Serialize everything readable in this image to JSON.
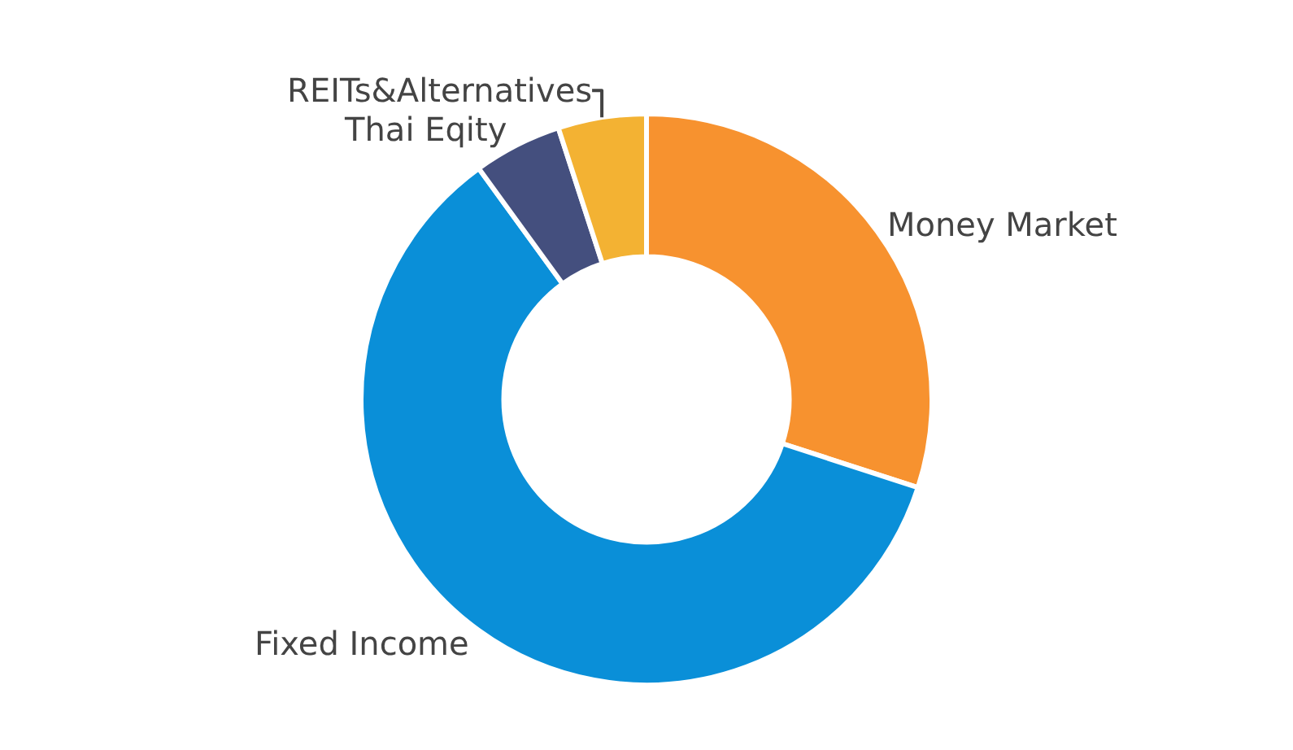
{
  "chart_data": {
    "type": "donut",
    "categories": [
      "Money Market",
      "Fixed Income",
      "Thai Eqity",
      "REITs&Alternatives"
    ],
    "values": [
      30,
      60,
      5,
      5
    ],
    "colors": [
      "#f7922f",
      "#0a8fd8",
      "#444f7e",
      "#f3b233"
    ],
    "legend": false
  }
}
